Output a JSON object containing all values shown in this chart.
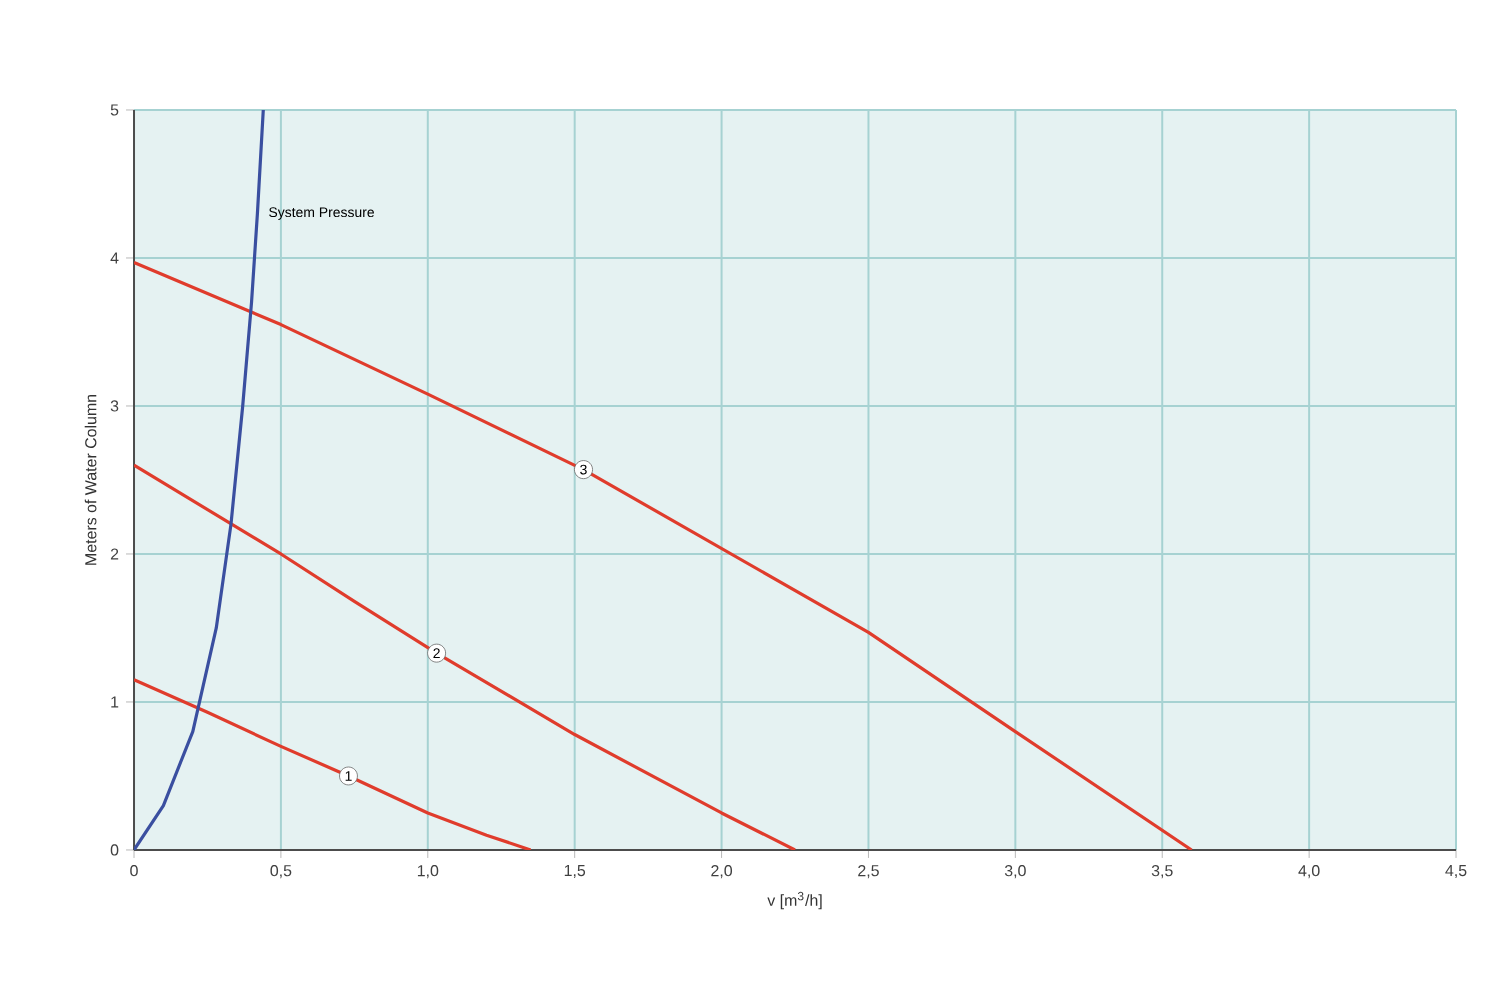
{
  "chart_data": {
    "type": "line",
    "xlabel": "v [m$^{3}$/h]",
    "ylabel": "Meters of Water Column",
    "xlim": [
      0,
      4.5
    ],
    "ylim": [
      0,
      5
    ],
    "xticks": [
      0,
      {
        "value": 0.5,
        "label": "0,5"
      },
      {
        "value": 1.0,
        "label": "1,0"
      },
      {
        "value": 1.5,
        "label": "1,5"
      },
      {
        "value": 2.0,
        "label": "2,0"
      },
      {
        "value": 2.5,
        "label": "2,5"
      },
      {
        "value": 3.0,
        "label": "3,0"
      },
      {
        "value": 3.5,
        "label": "3,5"
      },
      {
        "value": 4.0,
        "label": "4,0"
      },
      {
        "value": 4.5,
        "label": "4,5"
      }
    ],
    "yticks": [
      0,
      1,
      2,
      3,
      4,
      5
    ],
    "grid": true,
    "legend": false,
    "marker": "none",
    "line_style": "solid",
    "series": [
      {
        "name": "1",
        "color": "#e03c2c",
        "x": [
          0,
          0.25,
          0.5,
          0.73,
          1.0,
          1.2,
          1.35
        ],
        "values": [
          1.15,
          0.93,
          0.7,
          0.5,
          0.25,
          0.1,
          0
        ]
      },
      {
        "name": "2",
        "color": "#e03c2c",
        "x": [
          0,
          0.5,
          0.75,
          1.03,
          1.5,
          2.0,
          2.25
        ],
        "values": [
          2.6,
          2.0,
          1.68,
          1.33,
          0.78,
          0.25,
          0
        ]
      },
      {
        "name": "3",
        "color": "#e03c2c",
        "x": [
          0,
          0.5,
          1.0,
          1.53,
          2.5,
          3.0,
          3.6
        ],
        "values": [
          3.97,
          3.55,
          3.08,
          2.57,
          1.47,
          0.8,
          0
        ]
      },
      {
        "name": "System Pressure",
        "color": "#3a4fa0",
        "x": [
          0,
          0.1,
          0.2,
          0.28,
          0.33,
          0.37,
          0.4,
          0.42,
          0.44
        ],
        "values": [
          0,
          0.3,
          0.8,
          1.5,
          2.2,
          3.0,
          3.7,
          4.3,
          5.0
        ]
      }
    ]
  }
}
